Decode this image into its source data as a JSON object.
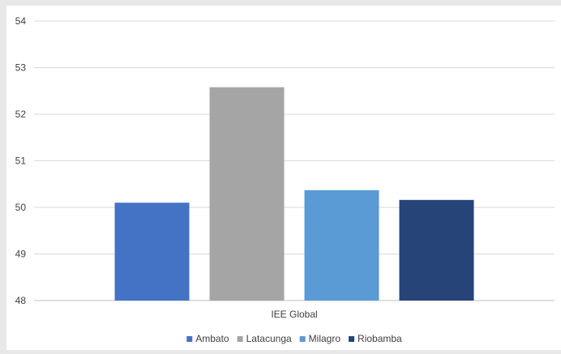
{
  "chart_data": {
    "type": "bar",
    "title": "",
    "xlabel": "",
    "ylabel": "",
    "categories": [
      "IEE Global"
    ],
    "series": [
      {
        "name": "Ambato",
        "values": [
          50.1
        ],
        "color": "#4472c4"
      },
      {
        "name": "Latacunga",
        "values": [
          52.58
        ],
        "color": "#a5a5a5"
      },
      {
        "name": "Milagro",
        "values": [
          50.37
        ],
        "color": "#5b9bd5"
      },
      {
        "name": "Riobamba",
        "values": [
          50.16
        ],
        "color": "#264478"
      }
    ],
    "ylim": [
      48,
      54
    ],
    "yticks": [
      "48",
      "49",
      "50",
      "51",
      "52",
      "53",
      "54"
    ],
    "grid": true,
    "legend_position": "bottom"
  }
}
